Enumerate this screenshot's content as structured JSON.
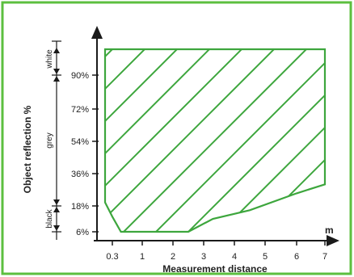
{
  "chart_data": {
    "type": "area",
    "xlabel": "Measurement distance",
    "ylabel": "Object reflection %",
    "x_unit": "m",
    "x_ticks": [
      {
        "value": 0.3,
        "label": "0.3"
      },
      {
        "value": 1,
        "label": "1"
      },
      {
        "value": 2,
        "label": "2"
      },
      {
        "value": 3,
        "label": "3"
      },
      {
        "value": 4,
        "label": "4"
      },
      {
        "value": 5,
        "label": "5"
      },
      {
        "value": 6,
        "label": "6"
      },
      {
        "value": 7,
        "label": "7"
      }
    ],
    "y_ticks": [
      {
        "value": 6,
        "label": "6%"
      },
      {
        "value": 18,
        "label": "18%"
      },
      {
        "value": 36,
        "label": "36%"
      },
      {
        "value": 54,
        "label": "54%"
      },
      {
        "value": 72,
        "label": "72%"
      },
      {
        "value": 90,
        "label": "90%"
      }
    ],
    "y_bands": [
      {
        "label": "white",
        "from": 90,
        "to": 100
      },
      {
        "label": "grey",
        "from": 18,
        "to": 90
      },
      {
        "label": "black",
        "from": 6,
        "to": 18
      }
    ],
    "region": {
      "fill": "hatched",
      "boundary": [
        {
          "x": 0.25,
          "y": 100
        },
        {
          "x": 7,
          "y": 100
        },
        {
          "x": 7,
          "y": 30
        },
        {
          "x": 6,
          "y": 25
        },
        {
          "x": 4.5,
          "y": 16
        },
        {
          "x": 3.3,
          "y": 12
        },
        {
          "x": 2.5,
          "y": 6
        },
        {
          "x": 0.5,
          "y": 6
        },
        {
          "x": 0.3,
          "y": 13
        },
        {
          "x": 0.25,
          "y": 20
        }
      ]
    },
    "colors": {
      "frame": "#5cbf3f",
      "region": "#3da63d",
      "axis": "#1a1a1a"
    }
  }
}
